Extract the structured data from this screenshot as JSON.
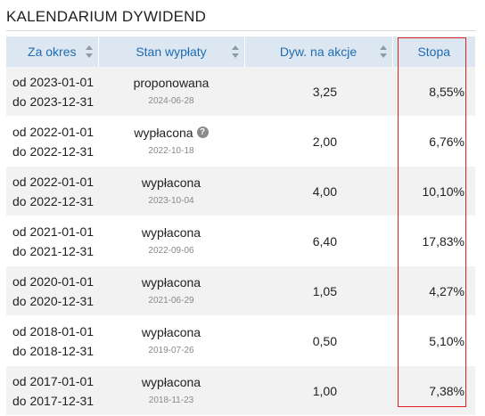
{
  "title": "KALENDARIUM DYWIDEND",
  "columns": [
    "Za okres",
    "Stan wypłaty",
    "Dyw. na akcje",
    "Stopa"
  ],
  "colors": {
    "header_bg": "#dce7f2",
    "header_text": "#1f6cb1",
    "highlight": "#e02020"
  },
  "rows": [
    {
      "from": "od 2023-01-01",
      "to": "do 2023-12-31",
      "status": "proponowana",
      "date": "2024-06-28",
      "dividend": "3,25",
      "rate": "8,55%",
      "help": false
    },
    {
      "from": "od 2022-01-01",
      "to": "do 2022-12-31",
      "status": "wypłacona",
      "date": "2022-10-18",
      "dividend": "2,00",
      "rate": "6,76%",
      "help": true
    },
    {
      "from": "od 2022-01-01",
      "to": "do 2022-12-31",
      "status": "wypłacona",
      "date": "2023-10-04",
      "dividend": "4,00",
      "rate": "10,10%",
      "help": false
    },
    {
      "from": "od 2021-01-01",
      "to": "do 2021-12-31",
      "status": "wypłacona",
      "date": "2022-09-06",
      "dividend": "6,40",
      "rate": "17,83%",
      "help": false
    },
    {
      "from": "od 2020-01-01",
      "to": "do 2020-12-31",
      "status": "wypłacona",
      "date": "2021-06-29",
      "dividend": "1,05",
      "rate": "4,27%",
      "help": false
    },
    {
      "from": "od 2018-01-01",
      "to": "do 2018-12-31",
      "status": "wypłacona",
      "date": "2019-07-26",
      "dividend": "0,50",
      "rate": "5,10%",
      "help": false
    },
    {
      "from": "od 2017-01-01",
      "to": "do 2017-12-31",
      "status": "wypłacona",
      "date": "2018-11-23",
      "dividend": "1,00",
      "rate": "7,38%",
      "help": false
    }
  ]
}
